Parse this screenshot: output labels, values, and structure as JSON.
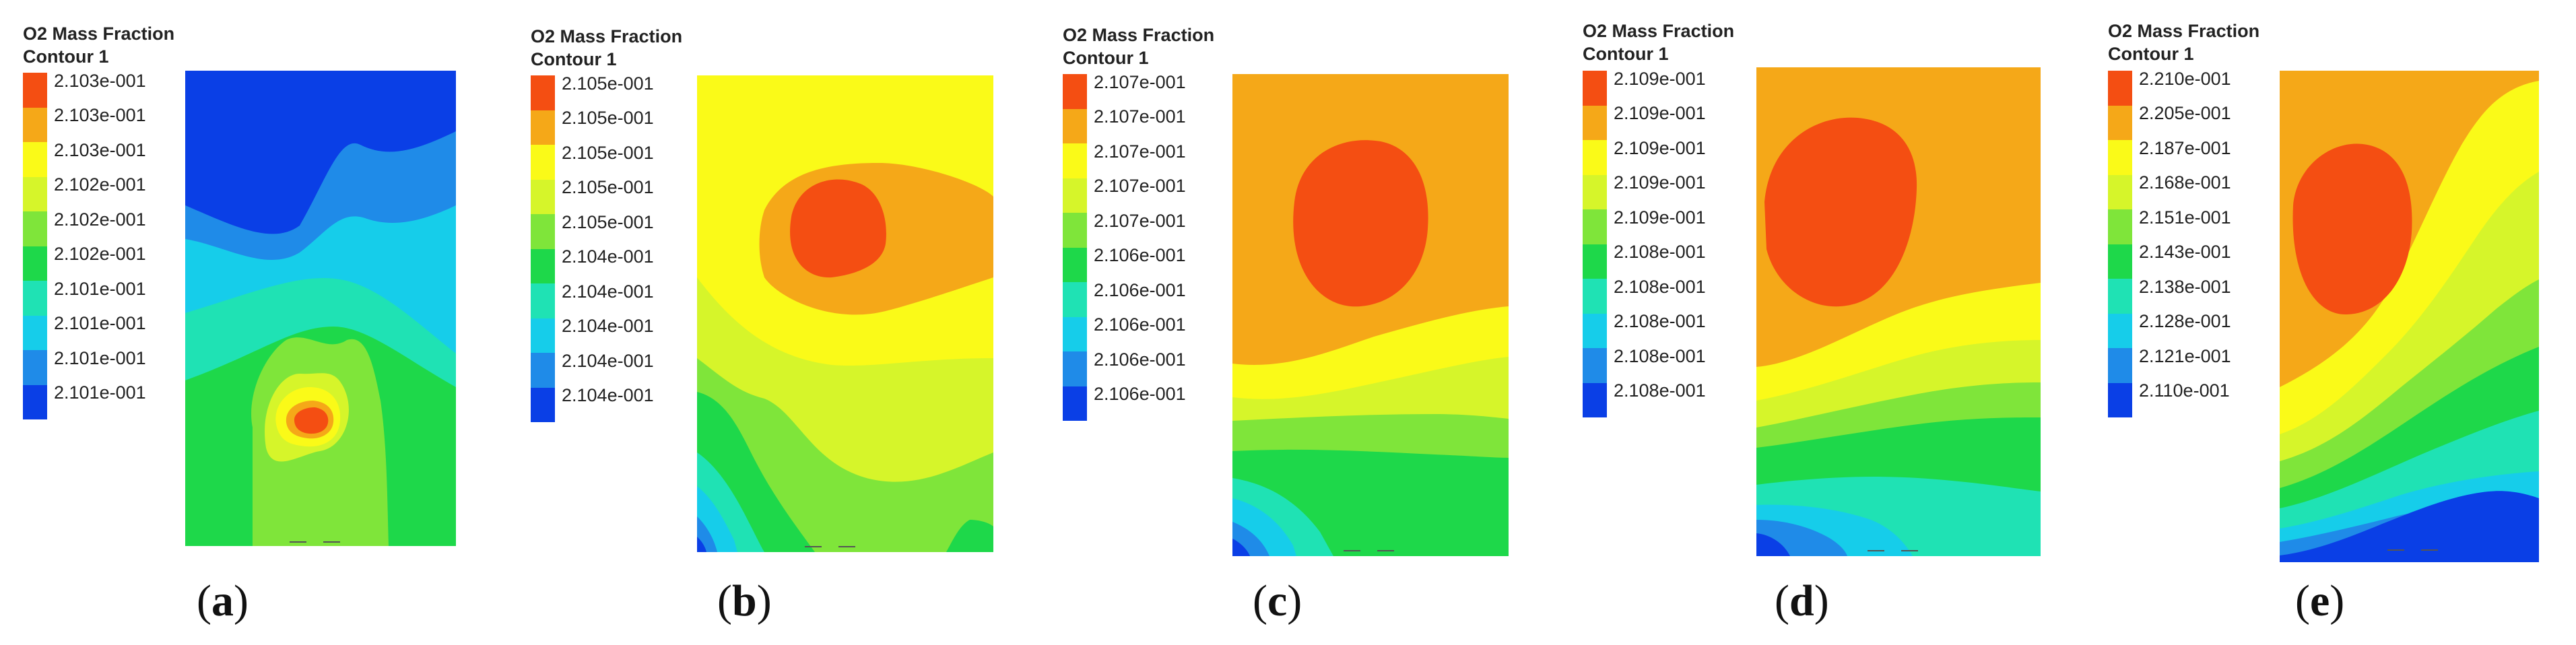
{
  "colors": {
    "level_1": "#0a3fe6",
    "level_2": "#1f8be8",
    "level_3": "#16cdea",
    "level_4": "#1fe2b4",
    "level_5": "#1ed84a",
    "level_6": "#7fe53a",
    "level_7": "#d6f52a",
    "level_8": "#fafa18",
    "level_9": "#f5a818",
    "level_10": "#f44e12"
  },
  "panels": [
    {
      "id": "a",
      "legend": {
        "title": "O2 Mass Fraction",
        "subtitle": "Contour 1",
        "labels": [
          "2.103e-001",
          "2.103e-001",
          "2.103e-001",
          "2.102e-001",
          "2.102e-001",
          "2.102e-001",
          "2.101e-001",
          "2.101e-001",
          "2.101e-001",
          "2.101e-001"
        ]
      },
      "caption": {
        "open": "(",
        "letter": "a",
        "close": ")"
      }
    },
    {
      "id": "b",
      "legend": {
        "title": "O2 Mass Fraction",
        "subtitle": "Contour 1",
        "labels": [
          "2.105e-001",
          "2.105e-001",
          "2.105e-001",
          "2.105e-001",
          "2.105e-001",
          "2.104e-001",
          "2.104e-001",
          "2.104e-001",
          "2.104e-001",
          "2.104e-001"
        ]
      },
      "caption": {
        "open": "(",
        "letter": "b",
        "close": ")"
      }
    },
    {
      "id": "c",
      "legend": {
        "title": "O2 Mass Fraction",
        "subtitle": "Contour 1",
        "labels": [
          "2.107e-001",
          "2.107e-001",
          "2.107e-001",
          "2.107e-001",
          "2.107e-001",
          "2.106e-001",
          "2.106e-001",
          "2.106e-001",
          "2.106e-001",
          "2.106e-001"
        ]
      },
      "caption": {
        "open": "(",
        "letter": "c",
        "close": ")"
      }
    },
    {
      "id": "d",
      "legend": {
        "title": "O2 Mass Fraction",
        "subtitle": "Contour 1",
        "labels": [
          "2.109e-001",
          "2.109e-001",
          "2.109e-001",
          "2.109e-001",
          "2.109e-001",
          "2.108e-001",
          "2.108e-001",
          "2.108e-001",
          "2.108e-001",
          "2.108e-001"
        ]
      },
      "caption": {
        "open": "(",
        "letter": "d",
        "close": ")"
      }
    },
    {
      "id": "e",
      "legend": {
        "title": "O2 Mass Fraction",
        "subtitle": "Contour 1",
        "labels": [
          "2.210e-001",
          "2.205e-001",
          "2.187e-001",
          "2.168e-001",
          "2.151e-001",
          "2.143e-001",
          "2.138e-001",
          "2.128e-001",
          "2.121e-001",
          "2.110e-001"
        ]
      },
      "caption": {
        "open": "(",
        "letter": "e",
        "close": ")"
      }
    }
  ]
}
